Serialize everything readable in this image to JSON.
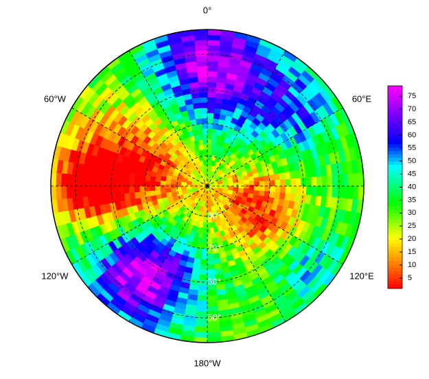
{
  "map": {
    "longitude_labels": [
      "0°",
      "60°E",
      "120°E",
      "180°W",
      "120°W",
      "60°W"
    ],
    "latitude_labels": [
      "80°",
      "70°",
      "60°",
      "50°"
    ],
    "colorbar": {
      "lim": [
        1,
        79
      ],
      "ticks": [
        5,
        10,
        15,
        20,
        25,
        30,
        35,
        40,
        45,
        50,
        55,
        60,
        65,
        70,
        75
      ]
    }
  }
}
